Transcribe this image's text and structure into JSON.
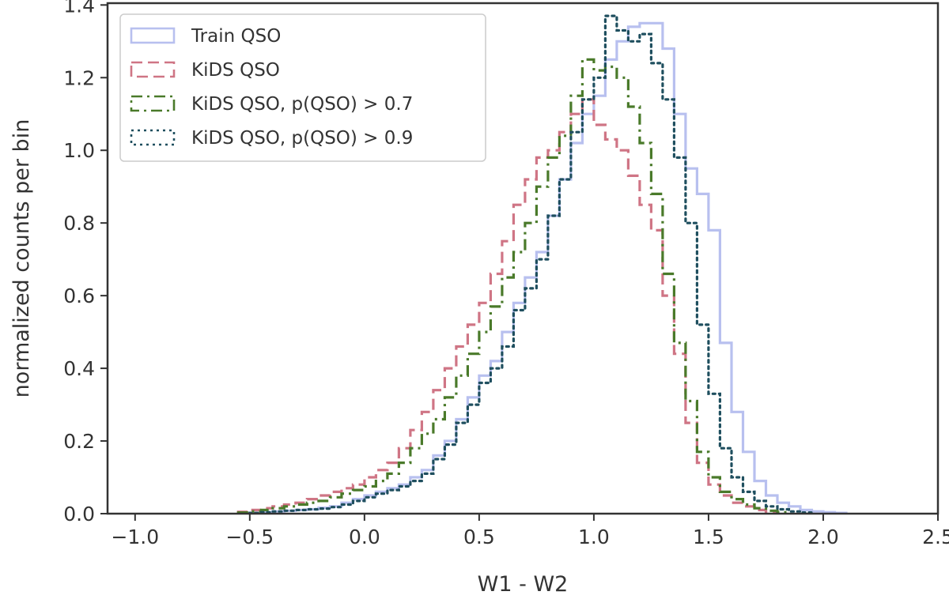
{
  "chart_data": {
    "type": "histogram-step",
    "title": "",
    "xlabel": "W1 - W2",
    "ylabel": "normalized counts per bin",
    "xlim": [
      -1.12,
      2.5
    ],
    "ylim": [
      0.0,
      1.405
    ],
    "x_ticks": [
      -1.0,
      -0.5,
      0.0,
      0.5,
      1.0,
      1.5,
      2.0,
      2.5
    ],
    "x_tick_labels": [
      "−1.0",
      "−0.5",
      "0.0",
      "0.5",
      "1.0",
      "1.5",
      "2.0",
      "2.5"
    ],
    "y_ticks": [
      0.0,
      0.2,
      0.4,
      0.6,
      0.8,
      1.0,
      1.2,
      1.4
    ],
    "y_tick_labels": [
      "0.0",
      "0.2",
      "0.4",
      "0.6",
      "0.8",
      "1.0",
      "1.2",
      "1.4"
    ],
    "grid": false,
    "legend_position": "upper-left",
    "bin_width": 0.05,
    "series": [
      {
        "name": "Train QSO",
        "color": "#b8c0ef",
        "style": "solid",
        "start": -0.5,
        "values": [
          0.002,
          0.004,
          0.006,
          0.008,
          0.01,
          0.012,
          0.016,
          0.02,
          0.03,
          0.04,
          0.05,
          0.06,
          0.07,
          0.08,
          0.1,
          0.12,
          0.16,
          0.2,
          0.26,
          0.32,
          0.38,
          0.42,
          0.5,
          0.58,
          0.65,
          0.72,
          0.82,
          0.92,
          1.02,
          1.1,
          1.15,
          1.25,
          1.3,
          1.34,
          1.35,
          1.35,
          1.28,
          1.1,
          0.95,
          0.88,
          0.78,
          0.47,
          0.28,
          0.17,
          0.09,
          0.05,
          0.03,
          0.02,
          0.01,
          0.006,
          0.004,
          0.002
        ]
      },
      {
        "name": "KiDS QSO",
        "color": "#cf7585",
        "style": "dashed",
        "start": -0.55,
        "values": [
          0.005,
          0.01,
          0.015,
          0.02,
          0.025,
          0.03,
          0.04,
          0.05,
          0.06,
          0.07,
          0.08,
          0.1,
          0.12,
          0.14,
          0.18,
          0.23,
          0.28,
          0.34,
          0.4,
          0.46,
          0.52,
          0.58,
          0.66,
          0.75,
          0.85,
          0.92,
          0.98,
          1.0,
          1.05,
          1.1,
          1.14,
          1.07,
          1.03,
          1.0,
          0.93,
          0.85,
          0.78,
          0.6,
          0.44,
          0.25,
          0.14,
          0.08,
          0.05,
          0.03,
          0.02,
          0.01,
          0.005
        ]
      },
      {
        "name": "KiDS QSO, p(QSO) > 0.7",
        "color": "#4a7a2a",
        "style": "dashdot",
        "start": -0.55,
        "values": [
          0.003,
          0.006,
          0.01,
          0.015,
          0.02,
          0.025,
          0.03,
          0.035,
          0.045,
          0.055,
          0.065,
          0.075,
          0.09,
          0.11,
          0.14,
          0.18,
          0.22,
          0.26,
          0.32,
          0.38,
          0.44,
          0.5,
          0.57,
          0.65,
          0.72,
          0.8,
          0.9,
          0.98,
          1.04,
          1.15,
          1.25,
          1.22,
          1.23,
          1.2,
          1.12,
          1.02,
          0.88,
          0.66,
          0.47,
          0.31,
          0.17,
          0.1,
          0.06,
          0.04,
          0.025,
          0.015,
          0.008,
          0.004
        ]
      },
      {
        "name": "KiDS QSO, p(QSO) > 0.9",
        "color": "#1f4f5f",
        "style": "dotted",
        "start": -0.5,
        "values": [
          0.002,
          0.004,
          0.006,
          0.008,
          0.01,
          0.012,
          0.014,
          0.018,
          0.025,
          0.035,
          0.045,
          0.055,
          0.065,
          0.075,
          0.09,
          0.11,
          0.15,
          0.19,
          0.25,
          0.3,
          0.36,
          0.4,
          0.46,
          0.56,
          0.62,
          0.7,
          0.82,
          0.92,
          1.05,
          1.14,
          1.2,
          1.37,
          1.33,
          1.3,
          1.32,
          1.24,
          1.14,
          0.98,
          0.8,
          0.52,
          0.33,
          0.18,
          0.1,
          0.06,
          0.035,
          0.02,
          0.012,
          0.006,
          0.003
        ]
      }
    ]
  }
}
